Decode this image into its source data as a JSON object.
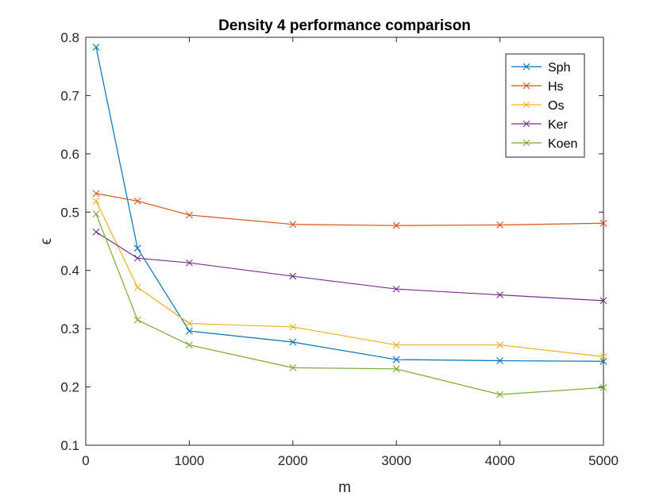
{
  "chart_data": {
    "type": "line",
    "title": "Density 4 performance comparison",
    "xlabel": "m",
    "ylabel": "ϵ",
    "xlim": [
      0,
      5000
    ],
    "ylim": [
      0.1,
      0.8
    ],
    "xticks": [
      0,
      1000,
      2000,
      3000,
      4000,
      5000
    ],
    "xtick_labels": [
      "0",
      "1000",
      "2000",
      "3000",
      "4000",
      "5000"
    ],
    "yticks": [
      0.1,
      0.2,
      0.3,
      0.4,
      0.5,
      0.6,
      0.7,
      0.8
    ],
    "ytick_labels": [
      "0.1",
      "0.2",
      "0.3",
      "0.4",
      "0.5",
      "0.6",
      "0.7",
      "0.8"
    ],
    "grid": false,
    "legend_position": "top-right",
    "marker": "x",
    "x": [
      100,
      500,
      1000,
      2000,
      3000,
      4000,
      5000
    ],
    "series": [
      {
        "name": "Sph",
        "color": "#0072BD",
        "values": [
          0.783,
          0.438,
          0.296,
          0.277,
          0.247,
          0.245,
          0.244
        ]
      },
      {
        "name": "Hs",
        "color": "#D95319",
        "values": [
          0.532,
          0.519,
          0.495,
          0.479,
          0.477,
          0.478,
          0.481
        ]
      },
      {
        "name": "Os",
        "color": "#EDB120",
        "values": [
          0.519,
          0.371,
          0.309,
          0.303,
          0.272,
          0.272,
          0.252
        ]
      },
      {
        "name": "Ker",
        "color": "#7E2F8E",
        "values": [
          0.466,
          0.421,
          0.413,
          0.39,
          0.368,
          0.358,
          0.348
        ]
      },
      {
        "name": "Koen",
        "color": "#77AC30",
        "values": [
          0.497,
          0.315,
          0.272,
          0.233,
          0.231,
          0.187,
          0.199
        ]
      }
    ]
  }
}
